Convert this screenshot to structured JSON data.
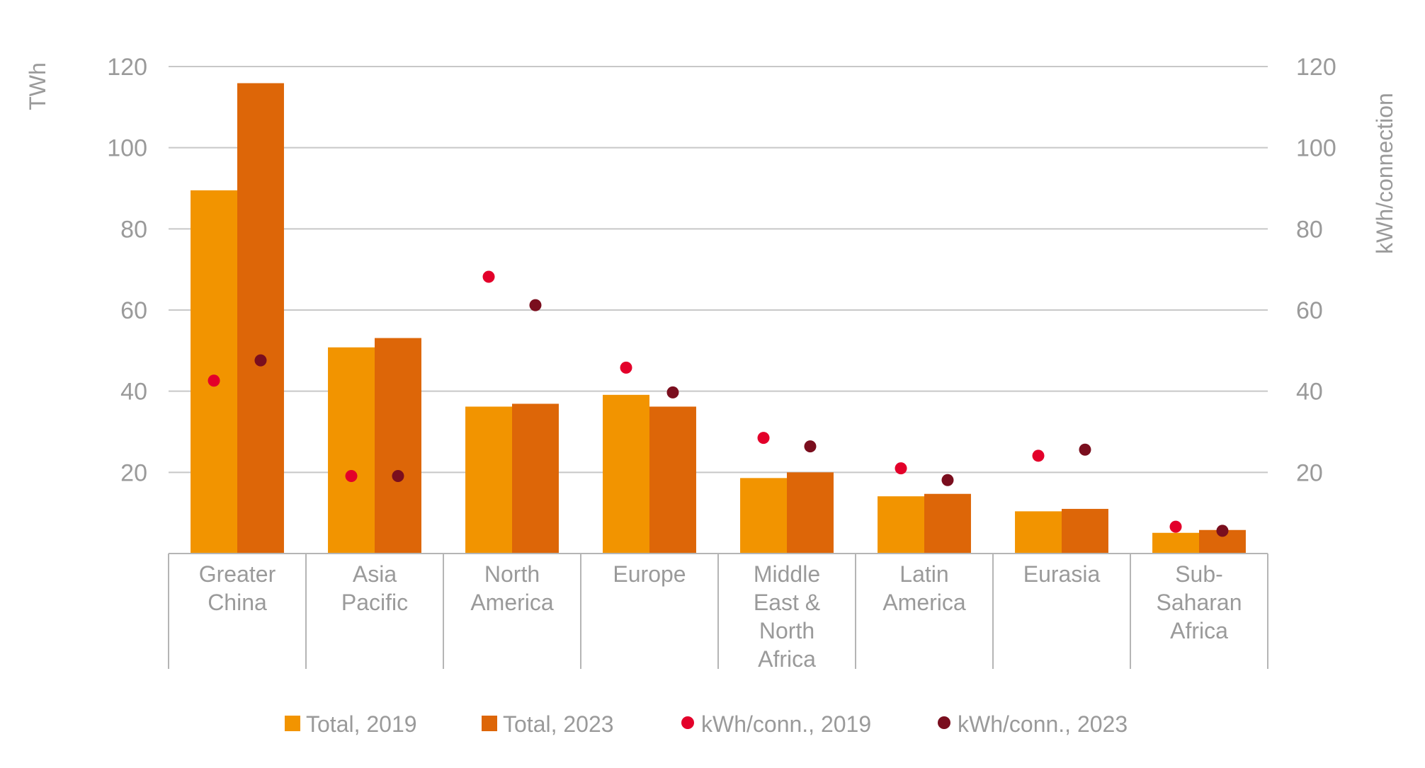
{
  "chart_data": {
    "type": "bar",
    "categories": [
      [
        "Greater",
        "China"
      ],
      [
        "Asia",
        "Pacific"
      ],
      [
        "North",
        "America"
      ],
      [
        "Europe"
      ],
      [
        "Middle",
        "East &",
        "North",
        "Africa"
      ],
      [
        "Latin",
        "America"
      ],
      [
        "Eurasia"
      ],
      [
        "Sub-",
        "Saharan",
        "Africa"
      ]
    ],
    "series": [
      {
        "name": "Total, 2019",
        "kind": "bar",
        "axis": "left",
        "color": "#f29400",
        "values": [
          89.5,
          50.8,
          36.2,
          39.1,
          18.6,
          14.1,
          10.4,
          5.1
        ]
      },
      {
        "name": "Total, 2023",
        "kind": "bar",
        "axis": "left",
        "color": "#dd6608",
        "values": [
          115.9,
          53.1,
          36.9,
          36.2,
          20.0,
          14.7,
          11.0,
          5.8
        ]
      },
      {
        "name": "kWh/conn., 2019",
        "kind": "point",
        "axis": "right",
        "color": "#e3002a",
        "values": [
          42.6,
          19.1,
          68.2,
          45.8,
          28.5,
          21.0,
          24.1,
          6.6
        ]
      },
      {
        "name": "kWh/conn., 2023",
        "kind": "point",
        "axis": "right",
        "color": "#7a0e1e",
        "values": [
          47.6,
          19.1,
          61.2,
          39.7,
          26.4,
          18.1,
          25.6,
          5.6
        ]
      }
    ],
    "ylabel": "TWh",
    "y2label": "kWh/connection",
    "ylim": [
      0,
      120
    ],
    "y2lim": [
      0,
      120
    ],
    "yticks": [
      20,
      40,
      60,
      80,
      100,
      120
    ],
    "grid": true,
    "legend_position": "bottom"
  }
}
